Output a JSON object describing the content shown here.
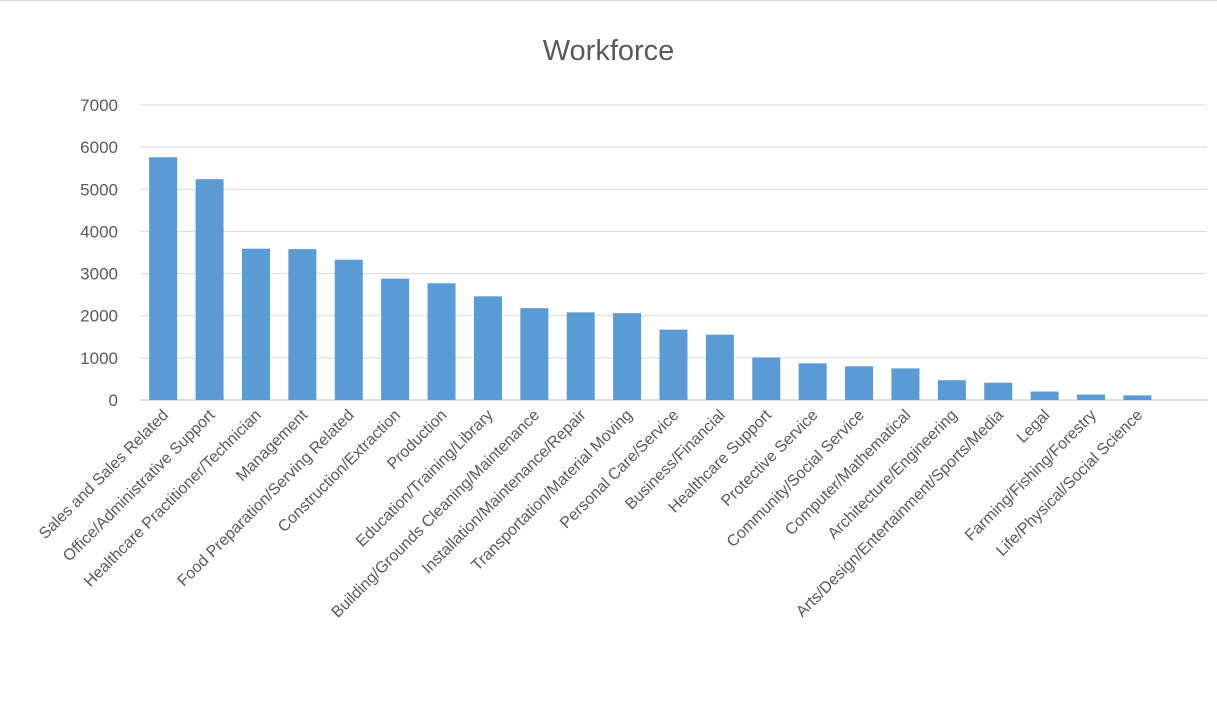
{
  "chart_data": {
    "type": "bar",
    "title": "Workforce",
    "xlabel": "",
    "ylabel": "",
    "ylim": [
      0,
      7000
    ],
    "yticks": [
      0,
      1000,
      2000,
      3000,
      4000,
      5000,
      6000,
      7000
    ],
    "grid": true,
    "legend": "none",
    "bar_color": "#5b9bd5",
    "categories": [
      "Sales and Sales Related",
      "Office/Administrative Support",
      "Healthcare Practitioner/Technician",
      "Management",
      "Food Preparation/Serving Related",
      "Construction/Extraction",
      "Production",
      "Education/Training/Library",
      "Building/Grounds Cleaning/Maintenance",
      "Installation/Maintenance/Repair",
      "Transportation/Material Moving",
      "Personal Care/Service",
      "Business/Financial",
      "Healthcare Support",
      "Protective Service",
      "Community/Social Service",
      "Computer/Mathematical",
      "Architecture/Engineering",
      "Arts/Design/Entertainment/Sports/Media",
      "Legal",
      "Farming/Fishing/Forestry",
      "Life/Physical/Social Science"
    ],
    "values": [
      5760,
      5240,
      3590,
      3580,
      3330,
      2880,
      2770,
      2460,
      2180,
      2080,
      2060,
      1670,
      1550,
      1010,
      870,
      800,
      750,
      470,
      410,
      200,
      130,
      110
    ]
  }
}
